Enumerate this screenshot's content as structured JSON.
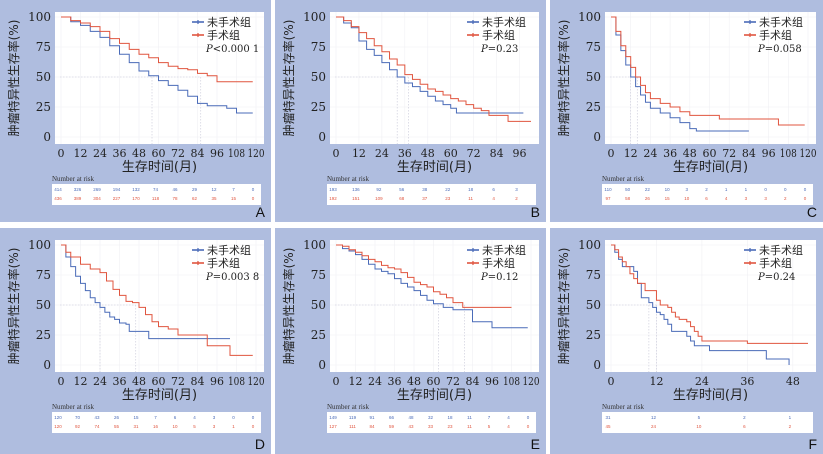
{
  "figure": {
    "background_color": "#afbddf",
    "series_colors": {
      "non_surgery": "#4a6bb8",
      "surgery": "#e0553f"
    },
    "risk_table_title": "Number at risk"
  },
  "chart_data": [
    {
      "type": "line",
      "panel": "A",
      "ylabel": "肿瘤特异性生存率(%)",
      "xlabel": "生存时间(月)",
      "xlim": [
        0,
        120
      ],
      "ylim": [
        0,
        100
      ],
      "xticks": [
        0,
        12,
        24,
        36,
        48,
        60,
        72,
        84,
        96,
        108,
        120
      ],
      "yticks": [
        0,
        25,
        50,
        75,
        100
      ],
      "legend": [
        "未手术组",
        "手术组"
      ],
      "legend_position": "top-right",
      "p_value": "P<0.000 1",
      "median_lines": [
        56,
        86
      ],
      "series": [
        {
          "name": "未手术组",
          "x": [
            0,
            6,
            12,
            18,
            24,
            30,
            36,
            42,
            48,
            54,
            60,
            66,
            72,
            78,
            84,
            90,
            96,
            102,
            108,
            114,
            118
          ],
          "y": [
            100,
            96,
            93,
            88,
            83,
            76,
            69,
            62,
            55,
            51,
            47,
            43,
            39,
            34,
            28,
            26,
            26,
            24,
            20,
            20,
            20
          ]
        },
        {
          "name": "手术组",
          "x": [
            0,
            6,
            12,
            18,
            24,
            30,
            36,
            42,
            48,
            54,
            60,
            66,
            72,
            78,
            84,
            90,
            96,
            102,
            108,
            114,
            118
          ],
          "y": [
            100,
            97,
            95,
            92,
            88,
            82,
            78,
            73,
            69,
            66,
            62,
            59,
            57,
            56,
            53,
            51,
            46,
            46,
            46,
            46,
            46
          ]
        }
      ],
      "risk_table": {
        "x": [
          0,
          12,
          24,
          36,
          48,
          60,
          72,
          84,
          96,
          108,
          120
        ],
        "未手术组": [
          414,
          326,
          269,
          194,
          132,
          74,
          46,
          29,
          12,
          7,
          0
        ],
        "手术组": [
          436,
          389,
          304,
          227,
          170,
          118,
          78,
          62,
          35,
          15,
          0
        ]
      }
    },
    {
      "type": "line",
      "panel": "B",
      "ylabel": "肿瘤特异性生存率(%)",
      "xlabel": "生存时间(月)",
      "xlim": [
        0,
        102
      ],
      "ylim": [
        0,
        100
      ],
      "xticks": [
        0,
        12,
        24,
        36,
        48,
        60,
        72,
        84,
        96
      ],
      "yticks": [
        0,
        25,
        50,
        75,
        100
      ],
      "legend": [
        "未手术组",
        "手术组"
      ],
      "legend_position": "top-right",
      "p_value": "P=0.23",
      "median_lines": [
        32,
        38
      ],
      "series": [
        {
          "name": "未手术组",
          "x": [
            0,
            4,
            8,
            12,
            16,
            20,
            24,
            28,
            32,
            36,
            40,
            44,
            48,
            52,
            56,
            60,
            63,
            70,
            80,
            90,
            98
          ],
          "y": [
            100,
            95,
            91,
            80,
            73,
            68,
            62,
            56,
            50,
            45,
            42,
            38,
            34,
            30,
            27,
            24,
            20,
            20,
            20,
            20,
            20
          ]
        },
        {
          "name": "手术组",
          "x": [
            0,
            4,
            8,
            12,
            16,
            20,
            24,
            28,
            32,
            36,
            40,
            44,
            48,
            52,
            56,
            60,
            64,
            68,
            72,
            76,
            80,
            90,
            102
          ],
          "y": [
            100,
            97,
            92,
            87,
            82,
            76,
            71,
            65,
            60,
            52,
            48,
            44,
            40,
            38,
            35,
            32,
            30,
            27,
            24,
            22,
            18,
            13,
            13
          ]
        }
      ],
      "risk_table": {
        "x": [
          0,
          12,
          24,
          36,
          48,
          60,
          72,
          84,
          96
        ],
        "未手术组": [
          193,
          136,
          92,
          56,
          38,
          22,
          18,
          6,
          3
        ],
        "手术组": [
          192,
          151,
          109,
          68,
          37,
          23,
          11,
          4,
          2
        ]
      }
    },
    {
      "type": "line",
      "panel": "C",
      "ylabel": "肿瘤特异性生存率(%)",
      "xlabel": "生存时间(月)",
      "xlim": [
        0,
        120
      ],
      "ylim": [
        0,
        100
      ],
      "xticks": [
        0,
        12,
        24,
        36,
        48,
        60,
        72,
        84,
        96,
        108,
        120
      ],
      "yticks": [
        0,
        25,
        50,
        75,
        100
      ],
      "legend": [
        "未手术组",
        "手术组"
      ],
      "legend_position": "top-right",
      "p_value": "P=0.058",
      "median_lines": [
        12,
        16
      ],
      "series": [
        {
          "name": "未手术组",
          "x": [
            0,
            3,
            6,
            9,
            12,
            15,
            18,
            21,
            24,
            30,
            36,
            42,
            48,
            52,
            60,
            70,
            84
          ],
          "y": [
            100,
            85,
            72,
            60,
            50,
            42,
            35,
            29,
            24,
            20,
            16,
            12,
            7,
            5,
            5,
            5,
            5
          ]
        },
        {
          "name": "手术组",
          "x": [
            0,
            3,
            6,
            9,
            12,
            15,
            18,
            21,
            24,
            30,
            36,
            42,
            48,
            56,
            66,
            80,
            92,
            102,
            118
          ],
          "y": [
            100,
            88,
            76,
            67,
            58,
            50,
            43,
            37,
            32,
            28,
            25,
            21,
            18,
            18,
            15,
            15,
            15,
            10,
            10
          ]
        }
      ],
      "risk_table": {
        "x": [
          0,
          12,
          24,
          36,
          48,
          60,
          72,
          84,
          96,
          108,
          120
        ],
        "未手术组": [
          110,
          50,
          22,
          10,
          3,
          2,
          1,
          1,
          0,
          0,
          0
        ],
        "手术组": [
          97,
          58,
          26,
          15,
          10,
          6,
          4,
          3,
          3,
          2,
          0
        ]
      }
    },
    {
      "type": "line",
      "panel": "D",
      "ylabel": "肿瘤特异性生存率(%)",
      "xlabel": "生存时间(月)",
      "xlim": [
        0,
        120
      ],
      "ylim": [
        0,
        100
      ],
      "xticks": [
        0,
        12,
        24,
        36,
        48,
        60,
        72,
        84,
        96,
        108,
        120
      ],
      "yticks": [
        0,
        25,
        50,
        75,
        100
      ],
      "legend": [
        "未手术组",
        "手术组"
      ],
      "legend_position": "top-right",
      "p_value": "P=0.003 8",
      "median_lines": [
        24,
        46
      ],
      "series": [
        {
          "name": "未手术组",
          "x": [
            0,
            3,
            6,
            9,
            12,
            15,
            18,
            21,
            24,
            27,
            30,
            33,
            36,
            40,
            42,
            48,
            54,
            60,
            72,
            84,
            96,
            104
          ],
          "y": [
            100,
            90,
            82,
            74,
            68,
            62,
            56,
            52,
            48,
            44,
            40,
            38,
            35,
            34,
            28,
            28,
            22,
            22,
            22,
            22,
            22,
            22
          ]
        },
        {
          "name": "手术组",
          "x": [
            0,
            3,
            6,
            12,
            18,
            24,
            28,
            32,
            36,
            40,
            44,
            48,
            52,
            56,
            60,
            66,
            72,
            78,
            84,
            90,
            98,
            104,
            118
          ],
          "y": [
            100,
            94,
            90,
            84,
            80,
            77,
            70,
            63,
            58,
            53,
            52,
            48,
            42,
            36,
            32,
            30,
            25,
            25,
            25,
            16,
            16,
            8,
            8
          ]
        }
      ],
      "risk_table": {
        "x": [
          0,
          12,
          24,
          36,
          48,
          60,
          72,
          84,
          96,
          108,
          120
        ],
        "未手术组": [
          120,
          70,
          43,
          26,
          15,
          7,
          6,
          4,
          3,
          0,
          0
        ],
        "手术组": [
          120,
          92,
          74,
          55,
          31,
          16,
          10,
          5,
          3,
          1,
          0
        ]
      }
    },
    {
      "type": "line",
      "panel": "E",
      "ylabel": "肿瘤特异性生存率(%)",
      "xlabel": "生存时间(月)",
      "xlim": [
        0,
        120
      ],
      "ylim": [
        0,
        100
      ],
      "xticks": [
        0,
        12,
        24,
        36,
        48,
        60,
        72,
        84,
        96,
        108,
        120
      ],
      "yticks": [
        0,
        25,
        50,
        75,
        100
      ],
      "legend": [
        "未手术组",
        "手术组"
      ],
      "legend_position": "top-right",
      "p_value": "P=0.12",
      "median_lines": [
        63,
        79
      ],
      "series": [
        {
          "name": "未手术组",
          "x": [
            0,
            4,
            8,
            12,
            16,
            20,
            24,
            28,
            32,
            36,
            40,
            44,
            48,
            52,
            56,
            60,
            66,
            72,
            78,
            84,
            90,
            96,
            108,
            118
          ],
          "y": [
            100,
            97,
            95,
            92,
            88,
            84,
            80,
            78,
            76,
            72,
            68,
            65,
            62,
            58,
            54,
            51,
            48,
            46,
            46,
            36,
            36,
            31,
            31,
            31
          ]
        },
        {
          "name": "手术组",
          "x": [
            0,
            4,
            8,
            12,
            16,
            20,
            24,
            28,
            32,
            36,
            40,
            44,
            48,
            52,
            56,
            60,
            64,
            68,
            72,
            78,
            90,
            108
          ],
          "y": [
            100,
            99,
            96,
            94,
            91,
            88,
            86,
            83,
            81,
            80,
            77,
            73,
            69,
            67,
            65,
            61,
            59,
            56,
            52,
            48,
            48,
            48
          ]
        }
      ],
      "risk_table": {
        "x": [
          0,
          12,
          24,
          36,
          48,
          60,
          72,
          84,
          96,
          108,
          120
        ],
        "未手术组": [
          149,
          119,
          91,
          66,
          48,
          32,
          18,
          11,
          7,
          4,
          0
        ],
        "手术组": [
          127,
          111,
          84,
          59,
          43,
          33,
          23,
          11,
          5,
          4,
          0
        ]
      }
    },
    {
      "type": "line",
      "panel": "F",
      "ylabel": "肿瘤特异性生存率(%)",
      "xlabel": "生存时间(月)",
      "xlim": [
        0,
        52
      ],
      "ylim": [
        0,
        100
      ],
      "xticks": [
        0,
        12,
        24,
        36,
        48
      ],
      "yticks": [
        0,
        25,
        50,
        75,
        100
      ],
      "legend": [
        "未手术组",
        "手术组"
      ],
      "legend_position": "top-right",
      "p_value": "P=0.24",
      "median_lines": [
        10,
        12
      ],
      "series": [
        {
          "name": "未手术组",
          "x": [
            0,
            1,
            2,
            3,
            5,
            6,
            7,
            8,
            10,
            11,
            12,
            13,
            14,
            15,
            16,
            18,
            20,
            21,
            22,
            24,
            26,
            28,
            32,
            40,
            41,
            47
          ],
          "y": [
            100,
            94,
            88,
            82,
            82,
            78,
            68,
            56,
            52,
            48,
            44,
            42,
            38,
            34,
            28,
            28,
            24,
            20,
            16,
            16,
            12,
            12,
            12,
            12,
            5,
            0
          ]
        },
        {
          "name": "手术组",
          "x": [
            0,
            1,
            2,
            3,
            4,
            5,
            6,
            7,
            9,
            11,
            12,
            13,
            15,
            16,
            17,
            18,
            20,
            21,
            22,
            23,
            24,
            26,
            30,
            35,
            36,
            44,
            52
          ],
          "y": [
            100,
            96,
            90,
            86,
            82,
            76,
            72,
            68,
            62,
            62,
            54,
            50,
            48,
            44,
            40,
            38,
            36,
            32,
            28,
            24,
            20,
            20,
            20,
            20,
            18,
            18,
            18
          ]
        }
      ],
      "risk_table": {
        "x": [
          0,
          12,
          24,
          36,
          48
        ],
        "未手术组": [
          31,
          12,
          5,
          2,
          1
        ],
        "手术组": [
          45,
          24,
          10,
          6,
          2
        ]
      }
    }
  ]
}
